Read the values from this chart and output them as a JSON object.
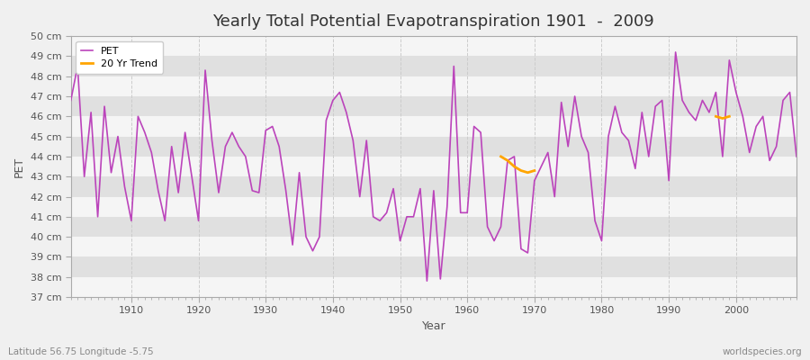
{
  "title": "Yearly Total Potential Evapotranspiration 1901  -  2009",
  "ylabel": "PET",
  "xlabel": "Year",
  "subtitle_left": "Latitude 56.75 Longitude -5.75",
  "subtitle_right": "worldspecies.org",
  "ylim": [
    37,
    50
  ],
  "xlim": [
    1901,
    2009
  ],
  "pet_color": "#bb44bb",
  "trend_color": "#ffa500",
  "bg_color": "#f0f0f0",
  "plot_bg_color": "#e8e8e8",
  "band_color_light": "#f5f5f5",
  "band_color_dark": "#e0e0e0",
  "grid_color_v": "#cccccc",
  "years": [
    1901,
    1902,
    1903,
    1904,
    1905,
    1906,
    1907,
    1908,
    1909,
    1910,
    1911,
    1912,
    1913,
    1914,
    1915,
    1916,
    1917,
    1918,
    1919,
    1920,
    1921,
    1922,
    1923,
    1924,
    1925,
    1926,
    1927,
    1928,
    1929,
    1930,
    1931,
    1932,
    1933,
    1934,
    1935,
    1936,
    1937,
    1938,
    1939,
    1940,
    1941,
    1942,
    1943,
    1944,
    1945,
    1946,
    1947,
    1948,
    1949,
    1950,
    1951,
    1952,
    1953,
    1954,
    1955,
    1956,
    1957,
    1958,
    1959,
    1960,
    1961,
    1962,
    1963,
    1964,
    1965,
    1966,
    1967,
    1968,
    1969,
    1970,
    1971,
    1972,
    1973,
    1974,
    1975,
    1976,
    1977,
    1978,
    1979,
    1980,
    1981,
    1982,
    1983,
    1984,
    1985,
    1986,
    1987,
    1988,
    1989,
    1990,
    1991,
    1992,
    1993,
    1994,
    1995,
    1996,
    1997,
    1998,
    1999,
    2000,
    2001,
    2002,
    2003,
    2004,
    2005,
    2006,
    2007,
    2008,
    2009
  ],
  "pet_values": [
    46.8,
    48.5,
    43.0,
    46.2,
    41.0,
    46.5,
    43.2,
    45.0,
    42.5,
    40.8,
    46.0,
    45.2,
    44.2,
    42.3,
    40.8,
    44.5,
    42.2,
    45.2,
    43.0,
    40.8,
    48.3,
    44.8,
    42.2,
    44.5,
    45.2,
    44.5,
    44.0,
    42.3,
    42.2,
    45.3,
    45.5,
    44.5,
    42.3,
    39.6,
    43.2,
    40.0,
    39.3,
    40.0,
    45.8,
    46.8,
    47.2,
    46.2,
    44.8,
    42.0,
    44.8,
    41.0,
    40.8,
    41.2,
    42.4,
    39.8,
    41.0,
    41.0,
    42.4,
    37.8,
    42.3,
    37.9,
    41.5,
    48.5,
    41.2,
    41.2,
    45.5,
    45.2,
    40.5,
    39.8,
    40.5,
    43.8,
    44.0,
    39.4,
    39.2,
    42.8,
    43.5,
    44.2,
    42.0,
    46.7,
    44.5,
    47.0,
    45.0,
    44.2,
    40.8,
    39.8,
    45.0,
    46.5,
    45.2,
    44.8,
    43.4,
    46.2,
    44.0,
    46.5,
    46.8,
    42.8,
    49.2,
    46.8,
    46.2,
    45.8,
    46.8,
    46.2,
    47.2,
    44.0,
    48.8,
    47.2,
    46.0,
    44.2,
    45.5,
    46.0,
    43.8,
    44.5,
    46.8,
    47.2,
    44.0
  ],
  "trend_seg1_years": [
    1965,
    1966,
    1967,
    1968,
    1969,
    1970
  ],
  "trend_seg1_values": [
    44.0,
    43.8,
    43.5,
    43.3,
    43.2,
    43.3
  ],
  "trend_seg2_years": [
    1997,
    1998,
    1999
  ],
  "trend_seg2_values": [
    46.0,
    45.9,
    46.0
  ]
}
